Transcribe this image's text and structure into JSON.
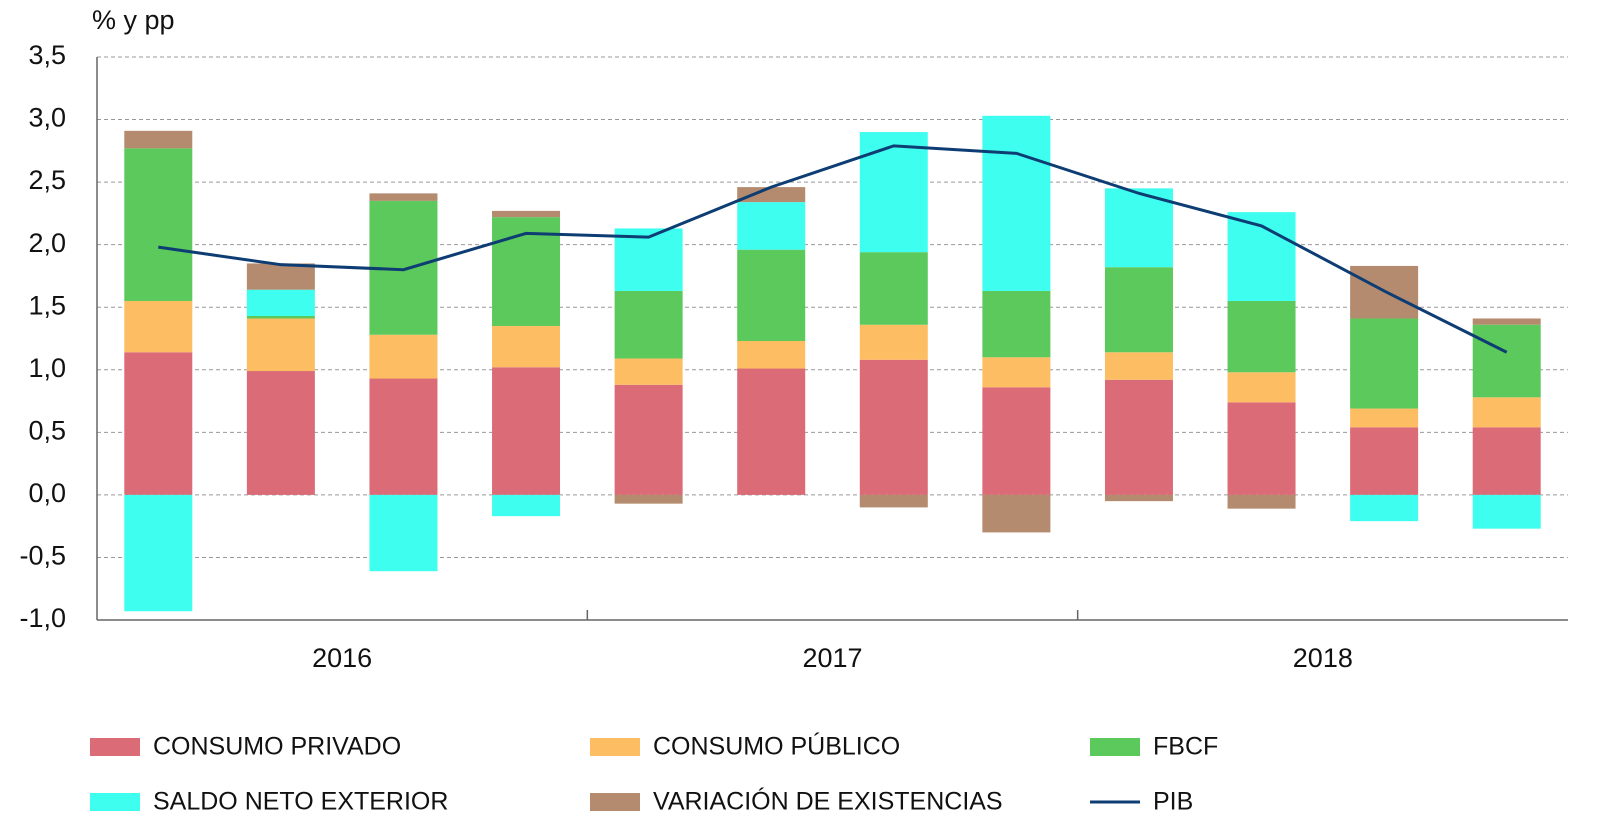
{
  "chart_data": {
    "type": "stacked_bar_line",
    "y_label": "% y pp",
    "categories": [
      null,
      null,
      null,
      null,
      null,
      null,
      null,
      null,
      null,
      null,
      null,
      null
    ],
    "groups": [
      "2016",
      "2017",
      "2018"
    ],
    "series": [
      {
        "name": "CONSUMO PRIVADO",
        "color": "#db6b77",
        "values": [
          1.14,
          0.99,
          0.93,
          1.02,
          0.88,
          1.01,
          1.08,
          0.86,
          0.92,
          0.74,
          0.54,
          0.54
        ]
      },
      {
        "name": "CONSUMO PÚBLICO",
        "color": "#fdbd63",
        "values": [
          0.41,
          0.42,
          0.35,
          0.33,
          0.21,
          0.22,
          0.28,
          0.24,
          0.22,
          0.24,
          0.15,
          0.24
        ]
      },
      {
        "name": "FBCF",
        "color": "#5bc95b",
        "values": [
          1.22,
          0.02,
          1.07,
          0.87,
          0.54,
          0.73,
          0.58,
          0.53,
          0.68,
          0.57,
          0.72,
          0.58
        ]
      },
      {
        "name": "SALDO NETO EXTERIOR",
        "color": "#3effef",
        "values": [
          -0.93,
          0.21,
          -0.61,
          -0.17,
          0.5,
          0.38,
          0.96,
          1.4,
          0.63,
          0.71,
          -0.21,
          -0.27
        ]
      },
      {
        "name": "VARIACIÓN DE EXISTENCIAS",
        "color": "#b48b6e",
        "values": [
          0.14,
          0.21,
          0.06,
          0.05,
          -0.07,
          0.12,
          -0.1,
          -0.3,
          -0.05,
          -0.11,
          0.42,
          0.05
        ]
      },
      {
        "name": "PIB",
        "type": "line",
        "color": "#0e3d74",
        "values": [
          1.98,
          1.84,
          1.8,
          2.09,
          2.06,
          2.46,
          2.79,
          2.73,
          2.41,
          2.15,
          1.63,
          1.14
        ]
      }
    ],
    "ylim": [
      -1,
      3.5
    ],
    "yticks": [
      {
        "value": -1,
        "label": "-1,0"
      },
      {
        "value": -0.5,
        "label": "-0,5"
      },
      {
        "value": 0,
        "label": "0,0"
      },
      {
        "value": 0.5,
        "label": "0,5"
      },
      {
        "value": 1,
        "label": "1,0"
      },
      {
        "value": 1.5,
        "label": "1,5"
      },
      {
        "value": 2,
        "label": "2,0"
      },
      {
        "value": 2.5,
        "label": "2,5"
      },
      {
        "value": 3,
        "label": "3,0"
      },
      {
        "value": 3.5,
        "label": "3,5"
      }
    ],
    "grid": true,
    "legend": "bottom"
  }
}
